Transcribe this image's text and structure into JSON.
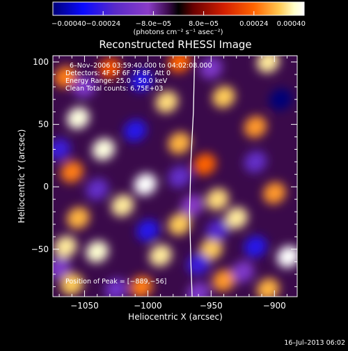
{
  "chart_data": {
    "type": "heatmap",
    "title": "Reconstructed RHESSI Image",
    "xlabel": "Heliocentric X (arcsec)",
    "ylabel": "Heliocentric Y (arcsec)",
    "xlim": [
      -1075,
      -882
    ],
    "ylim": [
      -88,
      105
    ],
    "xticks": [
      -1050,
      -1000,
      -950,
      -900
    ],
    "xtick_labels": [
      "−1050",
      "−1000",
      "−950",
      "−900"
    ],
    "yticks": [
      -50,
      0,
      50,
      100
    ],
    "ytick_labels": [
      "−50",
      "0",
      "50",
      "100"
    ],
    "colorbar": {
      "range": [
        -0.0004,
        0.0004
      ],
      "ticks": [
        -0.0004,
        -0.00024,
        -8e-05,
        8e-05,
        0.00024,
        0.0004
      ],
      "tick_labels": [
        "−0.00040",
        "−0.00024",
        "−8.0e−05",
        "8.0e−05",
        "0.00024",
        "0.00040"
      ],
      "unit_label": "(photons cm⁻² s⁻¹ asec⁻²)"
    },
    "annotations": [
      "6–Nov–2006 03:59:40.000 to 04:02:08.000",
      "Detectors: 4F 5F 6F 7F 8F, Att 0",
      "Energy Range: 25.0 – 50.0 keV",
      "Clean     Total counts: 6.75E+03"
    ],
    "peak_label": "Position of Peak = [−889,−56]",
    "peak": [
      -889,
      -56
    ],
    "limb_points": [
      [
        -963,
        105
      ],
      [
        -964,
        60
      ],
      [
        -966,
        20
      ],
      [
        -967,
        -20
      ],
      [
        -966,
        -60
      ],
      [
        -965,
        -88
      ]
    ],
    "blobs": [
      {
        "x": -1065,
        "y": 88,
        "v": 0.0002
      },
      {
        "x": -1030,
        "y": 95,
        "v": 0.00016
      },
      {
        "x": -975,
        "y": 100,
        "v": 0.00018
      },
      {
        "x": -905,
        "y": 100,
        "v": 0.0003
      },
      {
        "x": -1055,
        "y": 55,
        "v": 0.00036
      },
      {
        "x": -985,
        "y": 68,
        "v": 0.00028
      },
      {
        "x": -940,
        "y": 72,
        "v": 0.00026
      },
      {
        "x": -915,
        "y": 48,
        "v": 0.00022
      },
      {
        "x": -1035,
        "y": 30,
        "v": 0.00036
      },
      {
        "x": -975,
        "y": 35,
        "v": 0.00024
      },
      {
        "x": -955,
        "y": 18,
        "v": 0.00018
      },
      {
        "x": -1060,
        "y": 12,
        "v": 0.0002
      },
      {
        "x": -1002,
        "y": 2,
        "v": 0.0004
      },
      {
        "x": -945,
        "y": -10,
        "v": 0.00028
      },
      {
        "x": -900,
        "y": -5,
        "v": 0.00022
      },
      {
        "x": -1055,
        "y": -25,
        "v": 0.00024
      },
      {
        "x": -1020,
        "y": -15,
        "v": 0.0003
      },
      {
        "x": -975,
        "y": -30,
        "v": 0.00026
      },
      {
        "x": -930,
        "y": -25,
        "v": 0.0003
      },
      {
        "x": -1065,
        "y": -48,
        "v": 0.0003
      },
      {
        "x": -1040,
        "y": -52,
        "v": 0.00034
      },
      {
        "x": -990,
        "y": -55,
        "v": 0.0003
      },
      {
        "x": -950,
        "y": -50,
        "v": 0.00026
      },
      {
        "x": -889,
        "y": -56,
        "v": 0.0004
      },
      {
        "x": -1060,
        "y": -78,
        "v": 0.00026
      },
      {
        "x": -1005,
        "y": -80,
        "v": 0.0002
      },
      {
        "x": -940,
        "y": -75,
        "v": 0.00022
      },
      {
        "x": -905,
        "y": -82,
        "v": 0.00024
      },
      {
        "x": -1050,
        "y": 80,
        "v": -0.0002
      },
      {
        "x": -1005,
        "y": 85,
        "v": -0.0003
      },
      {
        "x": -950,
        "y": 95,
        "v": -0.0002
      },
      {
        "x": -895,
        "y": 70,
        "v": -0.0004
      },
      {
        "x": -1070,
        "y": 30,
        "v": -0.00028
      },
      {
        "x": -1010,
        "y": 45,
        "v": -0.0003
      },
      {
        "x": -915,
        "y": 20,
        "v": -0.00024
      },
      {
        "x": -1040,
        "y": -2,
        "v": -0.00024
      },
      {
        "x": -975,
        "y": 8,
        "v": -0.00024
      },
      {
        "x": -965,
        "y": -15,
        "v": -0.00018
      },
      {
        "x": -1000,
        "y": -35,
        "v": -0.0003
      },
      {
        "x": -945,
        "y": -35,
        "v": -0.00026
      },
      {
        "x": -1070,
        "y": -65,
        "v": -0.0002
      },
      {
        "x": -960,
        "y": -62,
        "v": -0.00028
      },
      {
        "x": -915,
        "y": -48,
        "v": -0.0003
      },
      {
        "x": -1025,
        "y": -82,
        "v": -0.00022
      },
      {
        "x": -960,
        "y": -85,
        "v": -0.0002
      },
      {
        "x": -925,
        "y": -68,
        "v": -0.0002
      }
    ],
    "colorscale": [
      "#000078",
      "#0a0aff",
      "#5a2ac8",
      "#8a3cc8",
      "#3a0a4a",
      "#000000",
      "#6a0000",
      "#d21e00",
      "#ff6400",
      "#ffc850",
      "#ffffc8",
      "#ffffff"
    ],
    "bg_color": "#000000",
    "text_color": "#ffffff"
  },
  "footer": {
    "timestamp": "16–Jul–2013 06:02"
  }
}
